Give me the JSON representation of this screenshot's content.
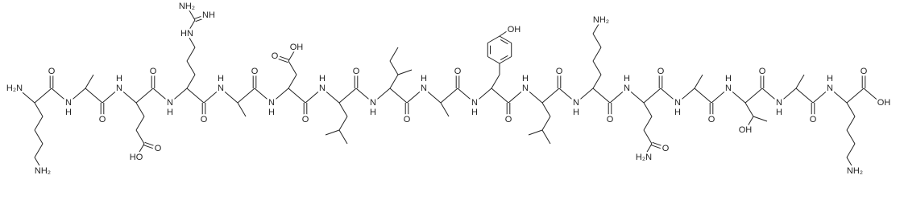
{
  "residues": [
    {
      "amine": [
        "H₂N"
      ],
      "carbonyl": "O",
      "side_chain": [
        "NH₂"
      ]
    },
    {
      "amine": [
        "H",
        "N"
      ],
      "carbonyl": "O"
    },
    {
      "amine": [
        "H",
        "N"
      ],
      "carbonyl": "O",
      "side_chain": [
        "O",
        "HO"
      ]
    },
    {
      "amine": [
        "H",
        "N"
      ],
      "carbonyl": "O",
      "side_chain": [
        "HN",
        "NH",
        "NH₂"
      ]
    },
    {
      "amine": [
        "H",
        "N"
      ],
      "carbonyl": "O"
    },
    {
      "amine": [
        "H",
        "N"
      ],
      "carbonyl": "O",
      "side_chain": [
        "O",
        "OH"
      ]
    },
    {
      "amine": [
        "H",
        "N"
      ],
      "carbonyl": "O"
    },
    {
      "amine": [
        "H",
        "N"
      ],
      "carbonyl": "O"
    },
    {
      "amine": [
        "H",
        "N"
      ],
      "carbonyl": "O"
    },
    {
      "amine": [
        "H",
        "N"
      ],
      "carbonyl": "O",
      "side_chain": [
        "OH"
      ]
    },
    {
      "amine": [
        "H",
        "N"
      ],
      "carbonyl": "O"
    },
    {
      "amine": [
        "H",
        "N"
      ],
      "carbonyl": "O",
      "side_chain": [
        "NH₂"
      ]
    },
    {
      "amine": [
        "H",
        "N"
      ],
      "carbonyl": "O",
      "side_chain": [
        "O",
        "H₂N"
      ]
    },
    {
      "amine": [
        "H",
        "N"
      ],
      "carbonyl": "O"
    },
    {
      "amine": [
        "H",
        "N"
      ],
      "carbonyl": "O",
      "side_chain": [
        "OH"
      ]
    },
    {
      "amine": [
        "H",
        "N"
      ],
      "carbonyl": "O"
    },
    {
      "amine": [
        "H",
        "N"
      ],
      "side_chain": [
        "NH₂"
      ]
    }
  ],
  "c_terminus": {
    "carbonyl": "O",
    "hydroxyl": "OH"
  }
}
